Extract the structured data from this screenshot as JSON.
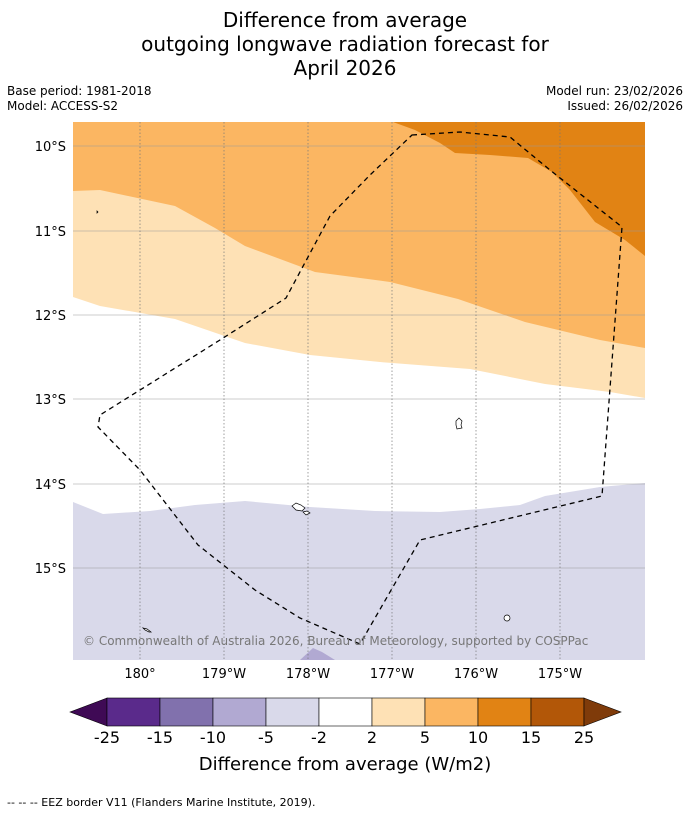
{
  "title": {
    "line1": "Difference from average",
    "line2": "outgoing longwave radiation forecast for",
    "line3": "April 2026"
  },
  "meta": {
    "base_period": "Base period: 1981-2018",
    "model": "Model: ACCESS-S2",
    "model_run": "Model run: 23/02/2026",
    "issued": "Issued: 26/02/2026"
  },
  "map": {
    "lat_labels": [
      "10°S",
      "11°S",
      "12°S",
      "13°S",
      "14°S",
      "15°S"
    ],
    "lon_labels": [
      "180°",
      "179°W",
      "178°W",
      "177°W",
      "176°W",
      "175°W"
    ],
    "copyright": "© Commonwealth of Australia 2026, Bureau of Meteorology, supported by COSPPac"
  },
  "colorbar": {
    "ticks": [
      "-25",
      "-15",
      "-10",
      "-5",
      "-2",
      "2",
      "5",
      "10",
      "15",
      "25"
    ],
    "colors": {
      "below_min": "#3f0a55",
      "m25_m15": "#5a2a8b",
      "m15_m10": "#8171ad",
      "m10_m5": "#b1a9d2",
      "m5_m2": "#d9d9ea",
      "m2_2": "#ffffff",
      "p2_5": "#fee1b5",
      "p5_10": "#fbb662",
      "p10_15": "#e18314",
      "p15_25": "#b25708",
      "above_max": "#7f3b0a"
    },
    "label": "Difference from average (W/m2)"
  },
  "footnote": "--  --  -- EEZ border V11 (Flanders Marine Institute, 2019)."
}
